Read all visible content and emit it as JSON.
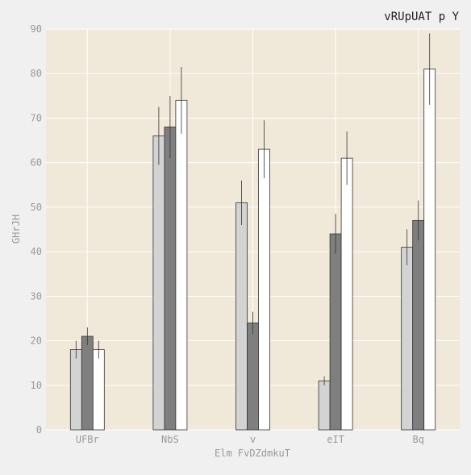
{
  "chart_data": {
    "type": "bar",
    "title": "vRUpUAT  p Y",
    "xlabel": "Elm FvDZdmkuT",
    "ylabel": "GHrJH",
    "categories": [
      "UFBr",
      "NbS",
      "v",
      "eIT",
      "Bq"
    ],
    "ylim": [
      0,
      90
    ],
    "yticks": [
      0,
      10,
      20,
      30,
      40,
      50,
      60,
      70,
      80,
      90
    ],
    "grid": true,
    "legend": "none",
    "series": [
      {
        "color": "#d3d3d3",
        "values": [
          18,
          66,
          51,
          11,
          41
        ],
        "errors": [
          2,
          6.5,
          5,
          1,
          4
        ]
      },
      {
        "color": "#7f7f7f",
        "values": [
          21,
          68,
          24,
          44,
          47
        ],
        "errors": [
          2,
          7,
          2.5,
          4.5,
          4.5
        ]
      },
      {
        "color": "#ffffff",
        "values": [
          18,
          74,
          63,
          61,
          81
        ],
        "errors": [
          2,
          7.5,
          6.5,
          6,
          8
        ]
      }
    ]
  },
  "colors": {
    "plot_background": "#f0e8d8",
    "page_background": "#f0f0f0",
    "grid": "#ffffff",
    "bar_edge": "#333333",
    "error_bar": "#333333"
  }
}
